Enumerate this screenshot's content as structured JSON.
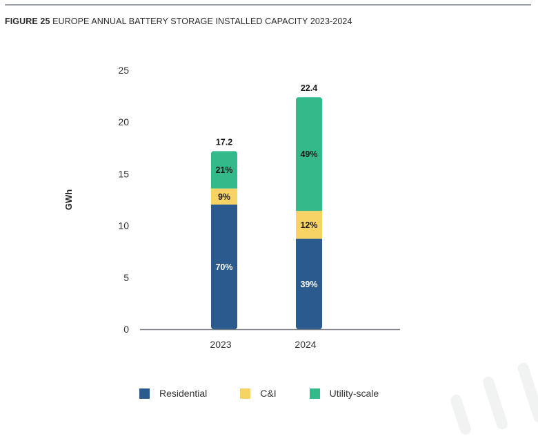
{
  "header": {
    "figure_label": "FIGURE 25",
    "title": "EUROPE ANNUAL BATTERY STORAGE INSTALLED CAPACITY 2023-2024"
  },
  "chart_data": {
    "type": "bar",
    "stacked": true,
    "title": "FIGURE 25 EUROPE ANNUAL BATTERY STORAGE INSTALLED CAPACITY 2023-2024",
    "xlabel": "",
    "ylabel": "GWh",
    "ylim": [
      0,
      25
    ],
    "yticks": [
      0,
      5,
      10,
      15,
      20,
      25
    ],
    "grid": false,
    "legend_position": "bottom",
    "categories": [
      "2023",
      "2024"
    ],
    "totals": [
      17.2,
      22.4
    ],
    "total_labels": [
      "17.2",
      "22.4"
    ],
    "series": [
      {
        "name": "Residential",
        "color": "#2b5a8e",
        "label_color": "#ffffff",
        "share_pct": [
          70,
          39
        ],
        "labels": [
          "70%",
          "39%"
        ]
      },
      {
        "name": "C&I",
        "color": "#f7d366",
        "label_color": "#1a1a1a",
        "share_pct": [
          9,
          12
        ],
        "labels": [
          "9%",
          "12%"
        ]
      },
      {
        "name": "Utility-scale",
        "color": "#33b98a",
        "label_color": "#1a1a1a",
        "share_pct": [
          21,
          49
        ],
        "labels": [
          "21%",
          "49%"
        ]
      }
    ]
  }
}
